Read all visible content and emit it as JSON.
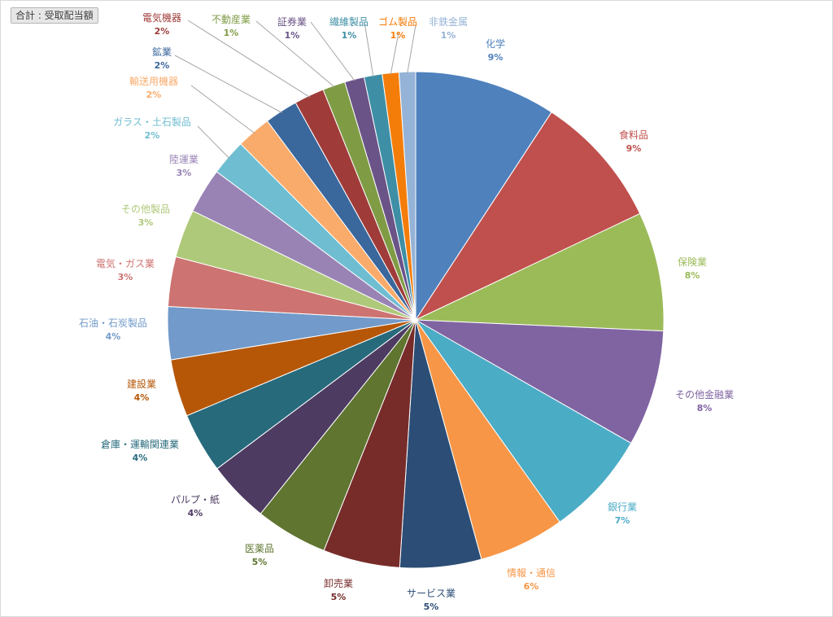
{
  "field_button": "合計 : 受取配当額",
  "chart_data": {
    "type": "pie",
    "title": "",
    "start_angle_deg": 0,
    "direction": "clockwise",
    "slices": [
      {
        "name": "化学",
        "label": "9%",
        "value": 9.4,
        "color": "#4F81BD"
      },
      {
        "name": "食料品",
        "label": "9%",
        "value": 8.9,
        "color": "#C0504D"
      },
      {
        "name": "保険業",
        "label": "8%",
        "value": 7.9,
        "color": "#9BBB59"
      },
      {
        "name": "その他金融業",
        "label": "8%",
        "value": 7.7,
        "color": "#8064A2"
      },
      {
        "name": "銀行業",
        "label": "7%",
        "value": 7.0,
        "color": "#4BACC6"
      },
      {
        "name": "情報・通信",
        "label": "6%",
        "value": 5.7,
        "color": "#F79646"
      },
      {
        "name": "サービス業",
        "label": "5%",
        "value": 5.4,
        "color": "#2C4D75"
      },
      {
        "name": "卸売業",
        "label": "5%",
        "value": 5.1,
        "color": "#772C2A"
      },
      {
        "name": "医薬品",
        "label": "5%",
        "value": 4.8,
        "color": "#5F7530"
      },
      {
        "name": "パルプ・紙",
        "label": "4%",
        "value": 4.1,
        "color": "#4D3B62"
      },
      {
        "name": "倉庫・運輸関連業",
        "label": "4%",
        "value": 4.0,
        "color": "#276A7C"
      },
      {
        "name": "建設業",
        "label": "4%",
        "value": 3.8,
        "color": "#B65708"
      },
      {
        "name": "石油・石炭製品",
        "label": "4%",
        "value": 3.5,
        "color": "#729ACA"
      },
      {
        "name": "電気・ガス業",
        "label": "3%",
        "value": 3.3,
        "color": "#CD7371"
      },
      {
        "name": "その他製品",
        "label": "3%",
        "value": 3.2,
        "color": "#AFC97A"
      },
      {
        "name": "陸運業",
        "label": "3%",
        "value": 3.0,
        "color": "#9983B5"
      },
      {
        "name": "ガラス・土石製品",
        "label": "2%",
        "value": 2.4,
        "color": "#6FBDD1"
      },
      {
        "name": "輸送用機器",
        "label": "2%",
        "value": 2.3,
        "color": "#F9AB6B"
      },
      {
        "name": "鉱業",
        "label": "2%",
        "value": 2.2,
        "color": "#3A679C"
      },
      {
        "name": "電気機器",
        "label": "2%",
        "value": 2.0,
        "color": "#9F3C39"
      },
      {
        "name": "不動産業",
        "label": "1%",
        "value": 1.5,
        "color": "#7F9C45"
      },
      {
        "name": "証券業",
        "label": "1%",
        "value": 1.3,
        "color": "#6A5387"
      },
      {
        "name": "繊維製品",
        "label": "1%",
        "value": 1.2,
        "color": "#3E8FA5"
      },
      {
        "name": "ゴム製品",
        "label": "1%",
        "value": 1.1,
        "color": "#F47D0A"
      },
      {
        "name": "非鉄金属",
        "label": "1%",
        "value": 1.1,
        "color": "#95B3D7"
      }
    ]
  }
}
